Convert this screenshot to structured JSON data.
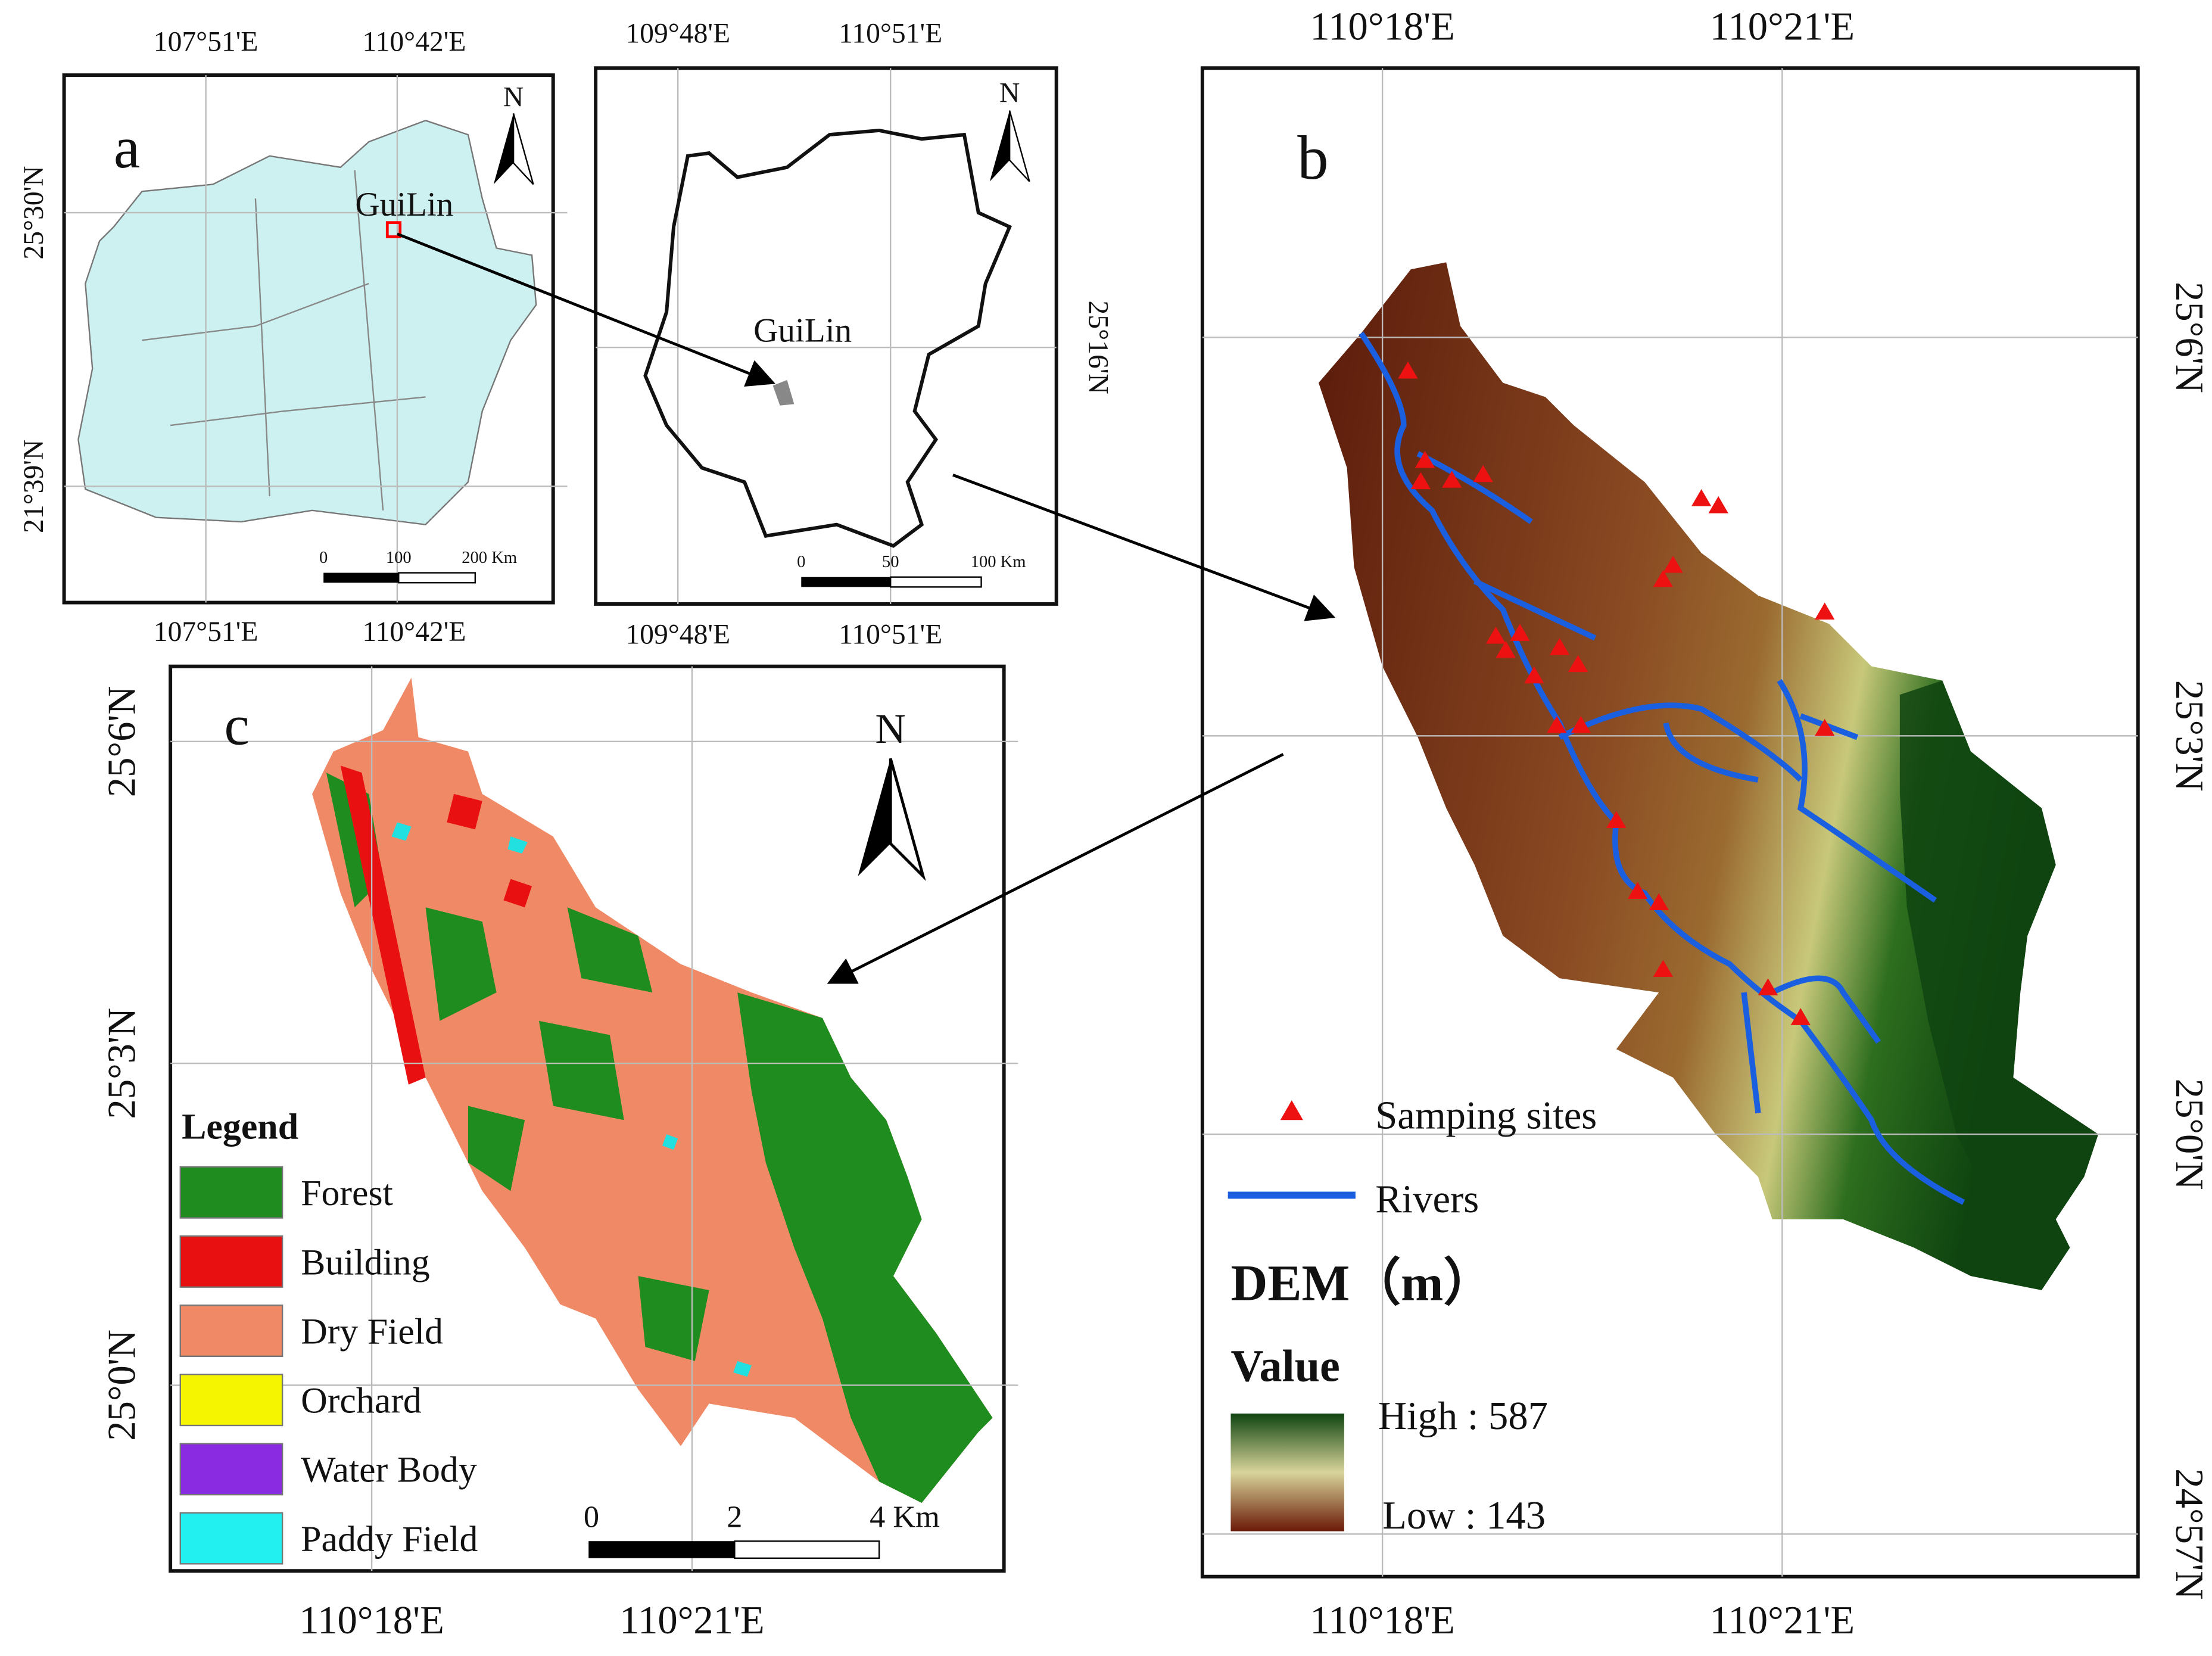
{
  "panel_a": {
    "label": "a",
    "place": "GuiLin",
    "north": "N",
    "top_lon": [
      "107°51'E",
      "110°42'E"
    ],
    "bottom_lon": [
      "107°51'E",
      "110°42'E"
    ],
    "left_lat": [
      "25°30'N",
      "21°39'N"
    ],
    "scale": [
      "0",
      "100",
      "200 Km"
    ]
  },
  "panel_inset": {
    "place": "GuiLin",
    "north": "N",
    "top_lon": [
      "109°48'E",
      "110°51'E"
    ],
    "bottom_lon": [
      "109°48'E",
      "110°51'E"
    ],
    "right_lat": [
      "25°16'N"
    ],
    "scale": [
      "0",
      "50",
      "100 Km"
    ]
  },
  "panel_b": {
    "label": "b",
    "top_lon": [
      "110°18'E",
      "110°21'E"
    ],
    "bottom_lon": [
      "110°18'E",
      "110°21'E"
    ],
    "right_lat": [
      "25°6'N",
      "25°3'N",
      "25°0'N",
      "24°57'N"
    ],
    "legend": {
      "sites": "Samping sites",
      "rivers": "Rivers",
      "dem_title": "DEM（m）",
      "value_title": "Value",
      "high": "High : 587",
      "low": "Low : 143"
    }
  },
  "panel_c": {
    "label": "c",
    "north": "N",
    "left_lat": [
      "25°6'N",
      "25°3'N",
      "25°0'N"
    ],
    "bottom_lon": [
      "110°18'E",
      "110°21'E"
    ],
    "legend_title": "Legend",
    "legend": [
      "Forest",
      "Building",
      "Dry Field",
      "Orchard",
      "Water Body",
      "Paddy Field"
    ],
    "scale": [
      "0",
      "2",
      "4 Km"
    ]
  }
}
